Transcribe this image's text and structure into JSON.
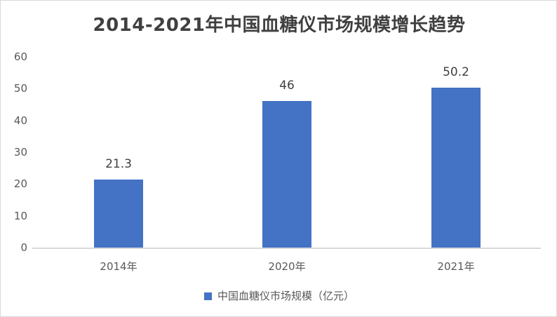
{
  "chart_data": {
    "type": "bar",
    "title": "2014-2021年中国血糖仪市场规模增长趋势",
    "categories": [
      "2014年",
      "2020年",
      "2021年"
    ],
    "series": [
      {
        "name": "中国血糖仪市场规模（亿元）",
        "values": [
          21.3,
          46,
          50.2
        ],
        "color": "#4472c4"
      }
    ],
    "data_labels": [
      "21.3",
      "46",
      "50.2"
    ],
    "xlabel": "",
    "ylabel": "",
    "ylim": [
      0,
      60
    ],
    "yticks": [
      "0",
      "10",
      "20",
      "30",
      "40",
      "50",
      "60"
    ],
    "grid": false,
    "legend_position": "bottom"
  },
  "colors": {
    "bar": "#4472c4",
    "axis": "#d9d9d9",
    "text": "#595959",
    "title": "#404040"
  }
}
